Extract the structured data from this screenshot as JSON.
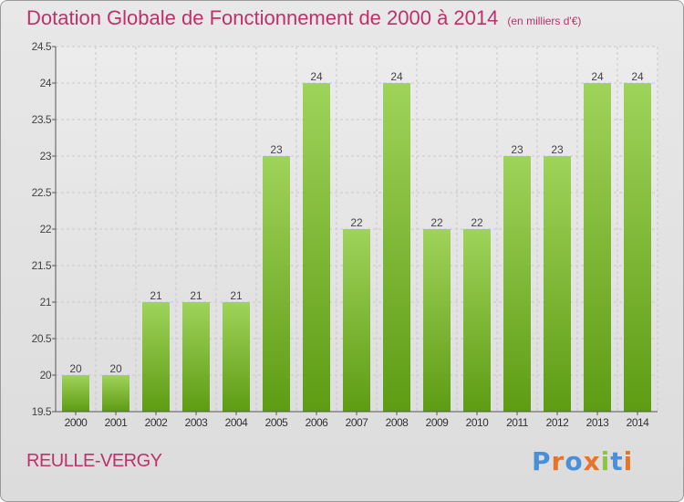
{
  "title": "Dotation Globale de Fonctionnement de 2000 à 2014",
  "unit": "(en milliers d'€)",
  "commune": "REULLE-VERGY",
  "logo": "Proxiti",
  "colors": {
    "title": "#c0306a",
    "bar_top": "#9fd35a",
    "bar_bottom": "#5e9c14",
    "background": "#e4e4e4"
  },
  "chart_data": {
    "type": "bar",
    "title": "Dotation Globale de Fonctionnement de 2000 à 2014",
    "subtitle": "(en milliers d'€)",
    "categories": [
      "2000",
      "2001",
      "2002",
      "2003",
      "2004",
      "2005",
      "2006",
      "2007",
      "2008",
      "2009",
      "2010",
      "2011",
      "2012",
      "2013",
      "2014"
    ],
    "values": [
      20,
      20,
      21,
      21,
      21,
      23,
      24,
      22,
      24,
      22,
      22,
      23,
      23,
      24,
      24
    ],
    "value_labels": [
      "20",
      "20",
      "21",
      "21",
      "21",
      "23",
      "24",
      "22",
      "24",
      "22",
      "22",
      "23",
      "23",
      "24",
      "24"
    ],
    "ylim": [
      19.5,
      24.5
    ],
    "yticks": [
      "19.5",
      "20",
      "20.5",
      "21",
      "21.5",
      "22",
      "22.5",
      "23",
      "23.5",
      "24",
      "24.5"
    ],
    "grid": true,
    "legend": "none"
  }
}
